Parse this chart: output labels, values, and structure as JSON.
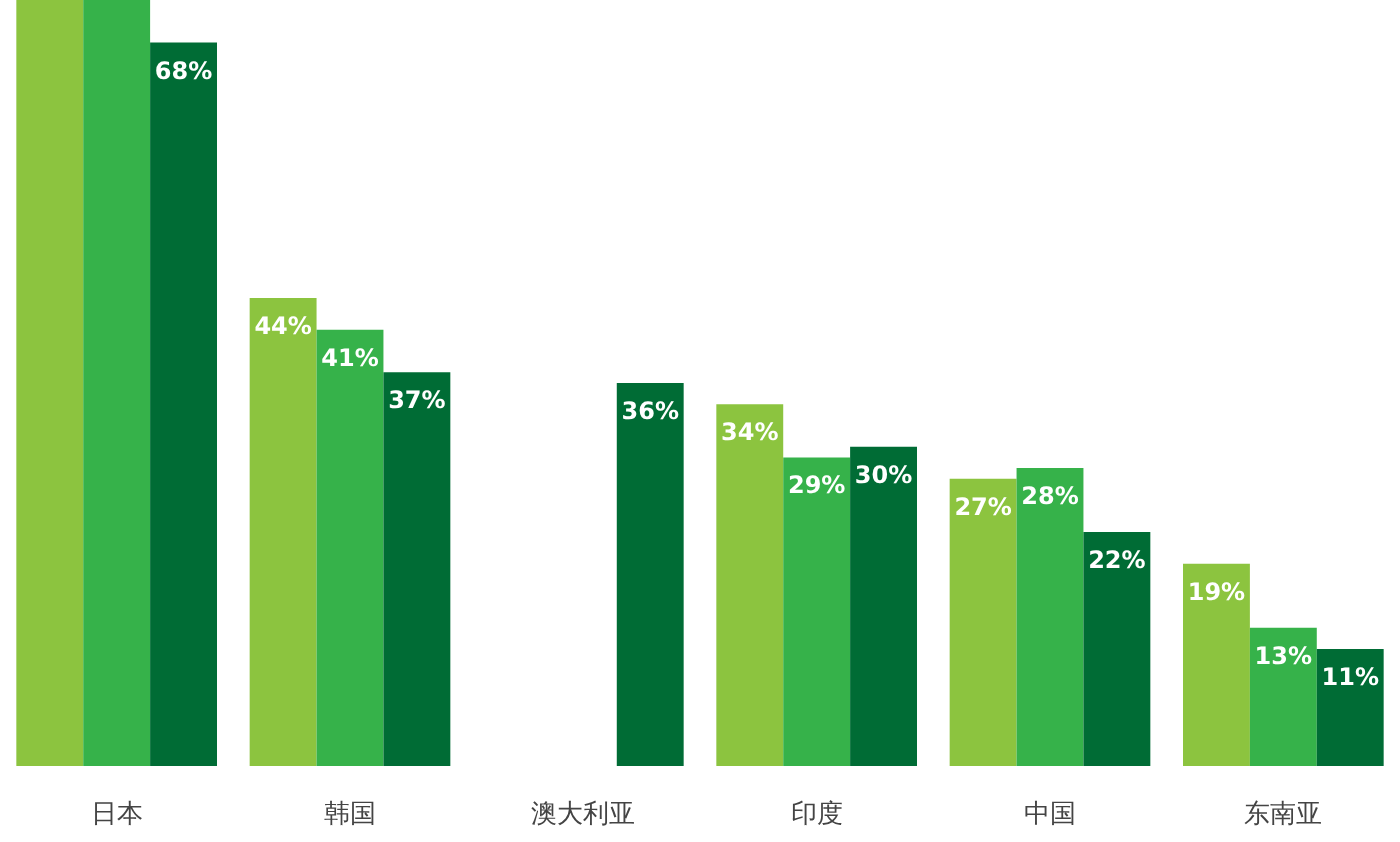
{
  "chart_data": {
    "type": "bar",
    "categories": [
      "日本",
      "韩国",
      "澳大利亚",
      "印度",
      "中国",
      "东南亚"
    ],
    "series": [
      {
        "color": "#8cc43f",
        "values": [
          72,
          44,
          null,
          34,
          27,
          19
        ],
        "value_labels": [
          null,
          "44%",
          null,
          "34%",
          "27%",
          "19%"
        ]
      },
      {
        "color": "#36b24a",
        "values": [
          72,
          41,
          null,
          29,
          28,
          13
        ],
        "value_labels": [
          null,
          "41%",
          null,
          "29%",
          "28%",
          "13%"
        ]
      },
      {
        "color": "#006c35",
        "values": [
          68,
          37,
          36,
          30,
          22,
          11
        ],
        "value_labels": [
          "68%",
          "37%",
          "36%",
          "30%",
          "22%",
          "11%"
        ]
      }
    ],
    "ylim": [
      0,
      72
    ],
    "tick_labels": "x"
  }
}
